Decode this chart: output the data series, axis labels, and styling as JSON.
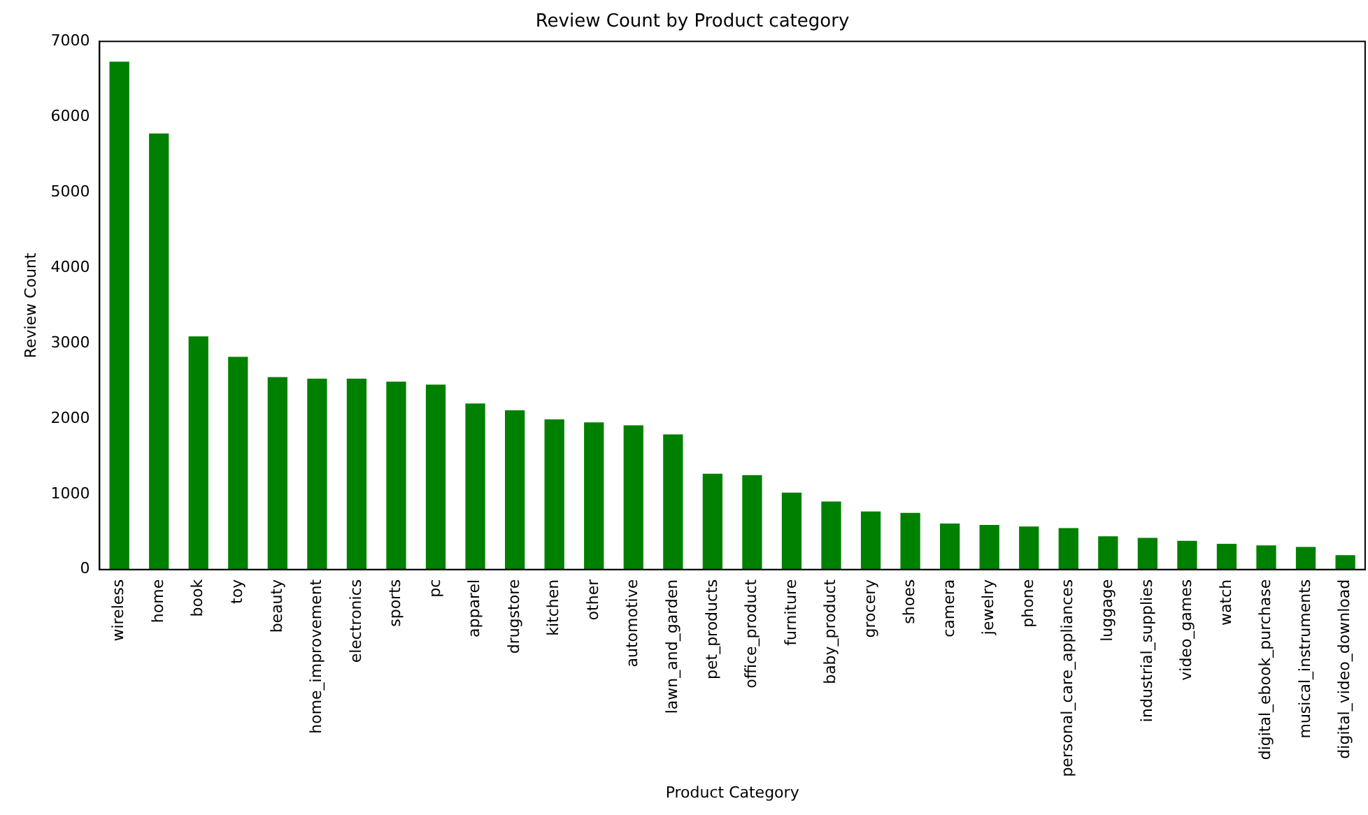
{
  "chart_data": {
    "type": "bar",
    "title": "Review Count by Product category",
    "xlabel": "Product Category",
    "ylabel": "Review Count",
    "categories": [
      "wireless",
      "home",
      "book",
      "toy",
      "beauty",
      "home_improvement",
      "electronics",
      "sports",
      "pc",
      "apparel",
      "drugstore",
      "kitchen",
      "other",
      "automotive",
      "lawn_and_garden",
      "pet_products",
      "office_product",
      "furniture",
      "baby_product",
      "grocery",
      "shoes",
      "camera",
      "jewelry",
      "phone",
      "personal_care_appliances",
      "luggage",
      "industrial_supplies",
      "video_games",
      "watch",
      "digital_ebook_purchase",
      "musical_instruments",
      "digital_video_download"
    ],
    "values": [
      6730,
      5780,
      3090,
      2820,
      2550,
      2530,
      2530,
      2490,
      2450,
      2200,
      2110,
      1990,
      1950,
      1910,
      1790,
      1270,
      1250,
      1020,
      900,
      770,
      750,
      610,
      590,
      570,
      550,
      440,
      420,
      380,
      340,
      320,
      300,
      190
    ],
    "color": "#008000",
    "ylim": [
      0,
      7000
    ],
    "yticks": [
      0,
      1000,
      2000,
      3000,
      4000,
      5000,
      6000,
      7000
    ],
    "grid": false,
    "legend": false
  }
}
